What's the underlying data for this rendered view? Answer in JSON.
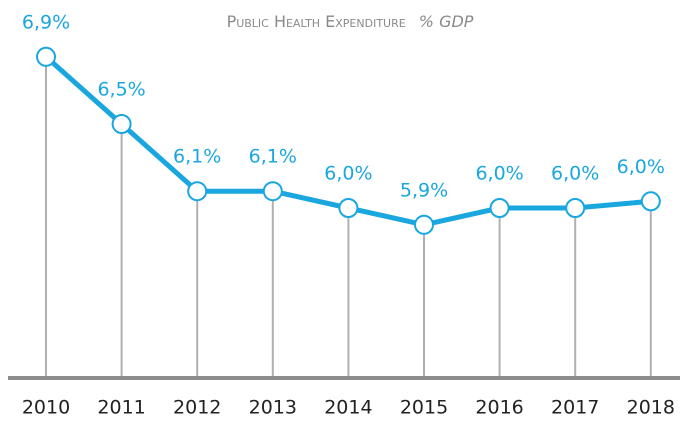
{
  "chart_data": {
    "type": "line",
    "title": "Public Health Expenditure",
    "subtitle": "% GDP",
    "categories": [
      "2010",
      "2011",
      "2012",
      "2013",
      "2014",
      "2015",
      "2016",
      "2017",
      "2018"
    ],
    "series": [
      {
        "color": "#1aa7e0",
        "values": [
          6.9,
          6.5,
          6.1,
          6.1,
          6.0,
          5.9,
          6.0,
          6.0,
          6.04
        ],
        "value_labels": [
          "6,9%",
          "6,5%",
          "6,1%",
          "6,1%",
          "6,0%",
          "5,9%",
          "6,0%",
          "6,0%",
          "6,0%"
        ]
      }
    ],
    "ylim": [
      5,
      7
    ]
  }
}
